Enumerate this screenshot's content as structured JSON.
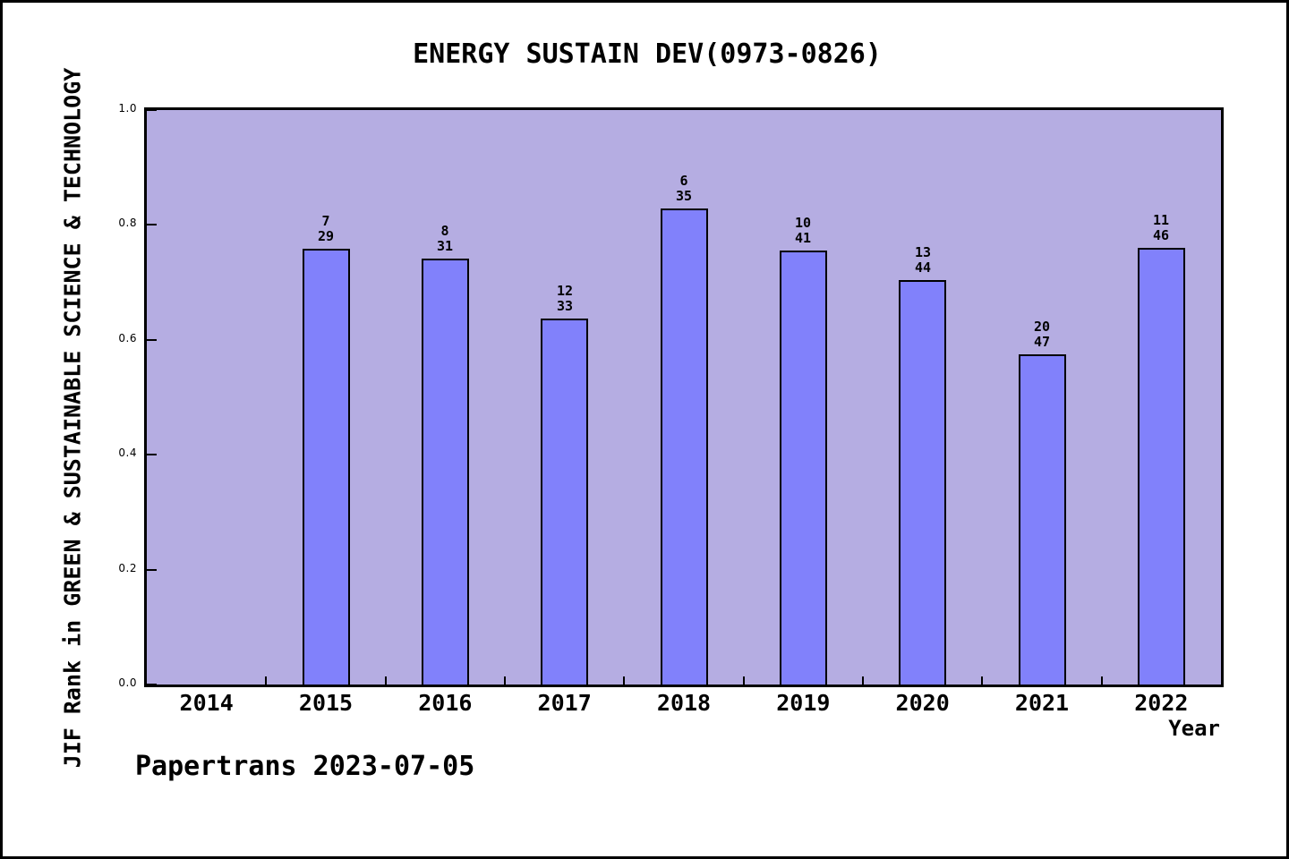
{
  "figure": {
    "title": "ENERGY SUSTAIN DEV(0973-0826)",
    "footer": "Papertrans 2023-07-05"
  },
  "colors": {
    "figure_bg": "#ffffff",
    "figure_border": "#000000",
    "plot_bg": "#b5ade2",
    "bar_fill": "#8181fb",
    "bar_border": "#000000",
    "text": "#000000"
  },
  "chart_data": {
    "type": "bar",
    "title": "ENERGY SUSTAIN DEV(0973-0826)",
    "xlabel": "Year",
    "ylabel": "JIF Rank in GREEN & SUSTAINABLE SCIENCE & TECHNOLOGY",
    "x_categories": [
      "2014",
      "2015",
      "2016",
      "2017",
      "2018",
      "2019",
      "2020",
      "2021",
      "2022"
    ],
    "xlim": [
      2013.5,
      2022.5
    ],
    "ylim": [
      0.0,
      1.0
    ],
    "yticks": [
      "0.0",
      "0.2",
      "0.4",
      "0.6",
      "0.8",
      "1.0"
    ],
    "grid": false,
    "legend": "none",
    "bar_width_fraction": 0.4,
    "annotation_format": "rank over total, stacked above each bar",
    "bars": [
      {
        "year": 2015,
        "rank": 7,
        "total": 29,
        "value": 0.7586
      },
      {
        "year": 2016,
        "rank": 8,
        "total": 31,
        "value": 0.7419
      },
      {
        "year": 2017,
        "rank": 12,
        "total": 33,
        "value": 0.6364
      },
      {
        "year": 2018,
        "rank": 6,
        "total": 35,
        "value": 0.8286
      },
      {
        "year": 2019,
        "rank": 10,
        "total": 41,
        "value": 0.7561
      },
      {
        "year": 2020,
        "rank": 13,
        "total": 44,
        "value": 0.7045
      },
      {
        "year": 2021,
        "rank": 20,
        "total": 47,
        "value": 0.5745
      },
      {
        "year": 2022,
        "rank": 11,
        "total": 46,
        "value": 0.7609
      }
    ]
  }
}
